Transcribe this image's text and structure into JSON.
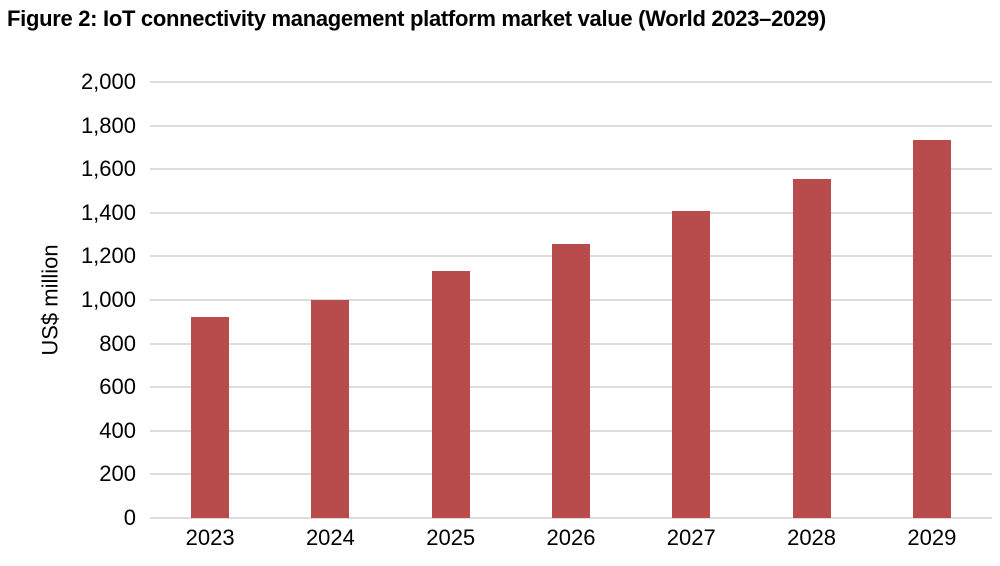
{
  "chart_data": {
    "type": "bar",
    "title": "Figure 2: IoT connectivity management platform market value (World 2023–2029)",
    "categories": [
      "2023",
      "2024",
      "2025",
      "2026",
      "2027",
      "2028",
      "2029"
    ],
    "values": [
      920,
      1000,
      1135,
      1255,
      1410,
      1555,
      1735
    ],
    "xlabel": "",
    "ylabel": "US$ million",
    "ylim": [
      0,
      2000
    ],
    "ytick_step": 200,
    "ytick_labels": [
      "0",
      "200",
      "400",
      "600",
      "800",
      "1,000",
      "1,200",
      "1,400",
      "1,600",
      "1,800",
      "2,000"
    ],
    "grid": true,
    "legend_position": "none",
    "bar_color": "#b84c4c",
    "gridline_color": "#dcdcdc",
    "text_color": "#000000",
    "background_color": "#ffffff"
  }
}
